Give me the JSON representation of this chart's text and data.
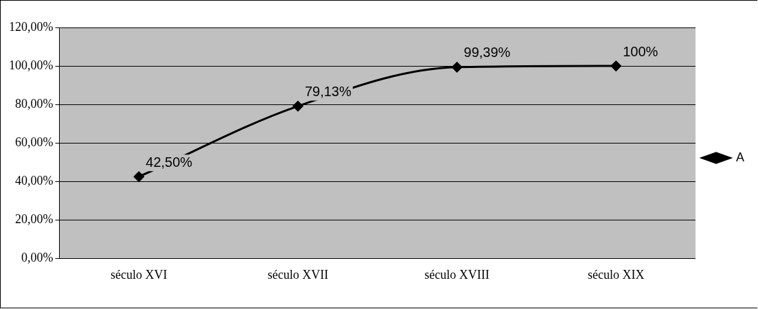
{
  "chart_data": {
    "type": "line",
    "categories": [
      "século XVI",
      "século XVII",
      "século XVIII",
      "século XIX"
    ],
    "series": [
      {
        "name": "A",
        "color": "#000000",
        "values": [
          42.5,
          79.13,
          99.39,
          100
        ],
        "value_labels": [
          "42,50%",
          "79,13%",
          "99,39%",
          "100%"
        ]
      }
    ],
    "ylim": [
      0,
      120
    ],
    "yticks": [
      {
        "value": 0,
        "label": "0,00%"
      },
      {
        "value": 20,
        "label": "20,00%"
      },
      {
        "value": 40,
        "label": "40,00%"
      },
      {
        "value": 60,
        "label": "60,00%"
      },
      {
        "value": 80,
        "label": "80,00%"
      },
      {
        "value": 100,
        "label": "100,00%"
      },
      {
        "value": 120,
        "label": "120,00%"
      }
    ],
    "grid": "y",
    "legend": "right",
    "marker": "diamond",
    "line_style": "solid"
  }
}
